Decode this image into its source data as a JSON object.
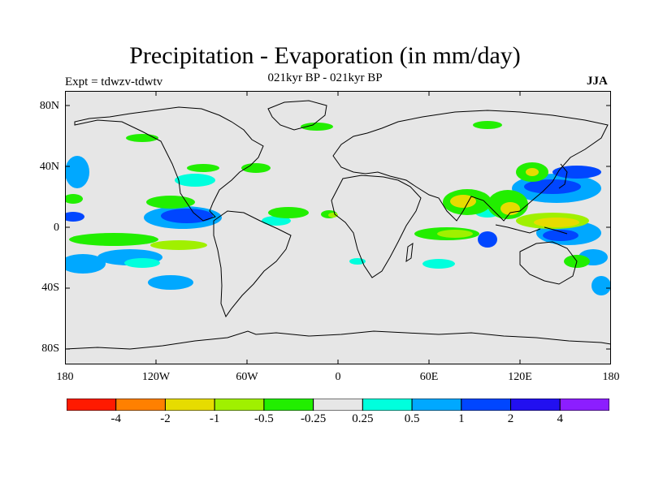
{
  "title": "Precipitation - Evaporation (in mm/day)",
  "subtitle": "021kyr BP - 021kyr BP",
  "experiment_label": "Expt = tdwzv-tdwtv",
  "season": "JJA",
  "lat_ticks": [
    "80N",
    "40N",
    "0",
    "40S",
    "80S"
  ],
  "lon_ticks": [
    "180",
    "120W",
    "60W",
    "0",
    "60E",
    "120E",
    "180"
  ],
  "colorbar": {
    "colors": [
      "#ff1a00",
      "#ff8000",
      "#e6dc00",
      "#a0f000",
      "#22ee00",
      "#e6e6e6",
      "#00ffdd",
      "#00a8ff",
      "#0046ff",
      "#2210f0",
      "#8c1eff"
    ],
    "labels": [
      "-4",
      "-2",
      "-1",
      "-0.5",
      "-0.25",
      "0.25",
      "0.5",
      "1",
      "2",
      "4"
    ]
  },
  "colors": {
    "ocean_fill": "#e6e6e6",
    "coastline": "#000000"
  }
}
